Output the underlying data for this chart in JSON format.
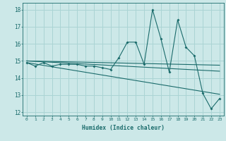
{
  "xlabel": "Humidex (Indice chaleur)",
  "bg_color": "#cce8e8",
  "grid_color": "#aad4d4",
  "line_color": "#1a6b6b",
  "xlim": [
    -0.5,
    23.5
  ],
  "ylim": [
    11.8,
    18.4
  ],
  "yticks": [
    12,
    13,
    14,
    15,
    16,
    17,
    18
  ],
  "xticks": [
    0,
    1,
    2,
    3,
    4,
    5,
    6,
    7,
    8,
    9,
    10,
    11,
    12,
    13,
    14,
    15,
    16,
    17,
    18,
    19,
    20,
    21,
    22,
    23
  ],
  "series_main": {
    "x": [
      0,
      1,
      2,
      3,
      4,
      5,
      6,
      7,
      8,
      9,
      10,
      11,
      12,
      13,
      14,
      15,
      16,
      17,
      18,
      19,
      20,
      21,
      22,
      23
    ],
    "y": [
      14.9,
      14.7,
      14.9,
      14.7,
      14.8,
      14.8,
      14.8,
      14.7,
      14.7,
      14.6,
      14.5,
      15.2,
      16.1,
      16.1,
      14.8,
      18.0,
      16.3,
      14.35,
      17.4,
      15.8,
      15.3,
      13.1,
      12.2,
      12.8
    ]
  },
  "trend_lines": [
    {
      "x": [
        0,
        23
      ],
      "y": [
        14.9,
        13.05
      ]
    },
    {
      "x": [
        0,
        23
      ],
      "y": [
        15.0,
        14.75
      ]
    },
    {
      "x": [
        0,
        23
      ],
      "y": [
        15.0,
        14.4
      ]
    }
  ]
}
